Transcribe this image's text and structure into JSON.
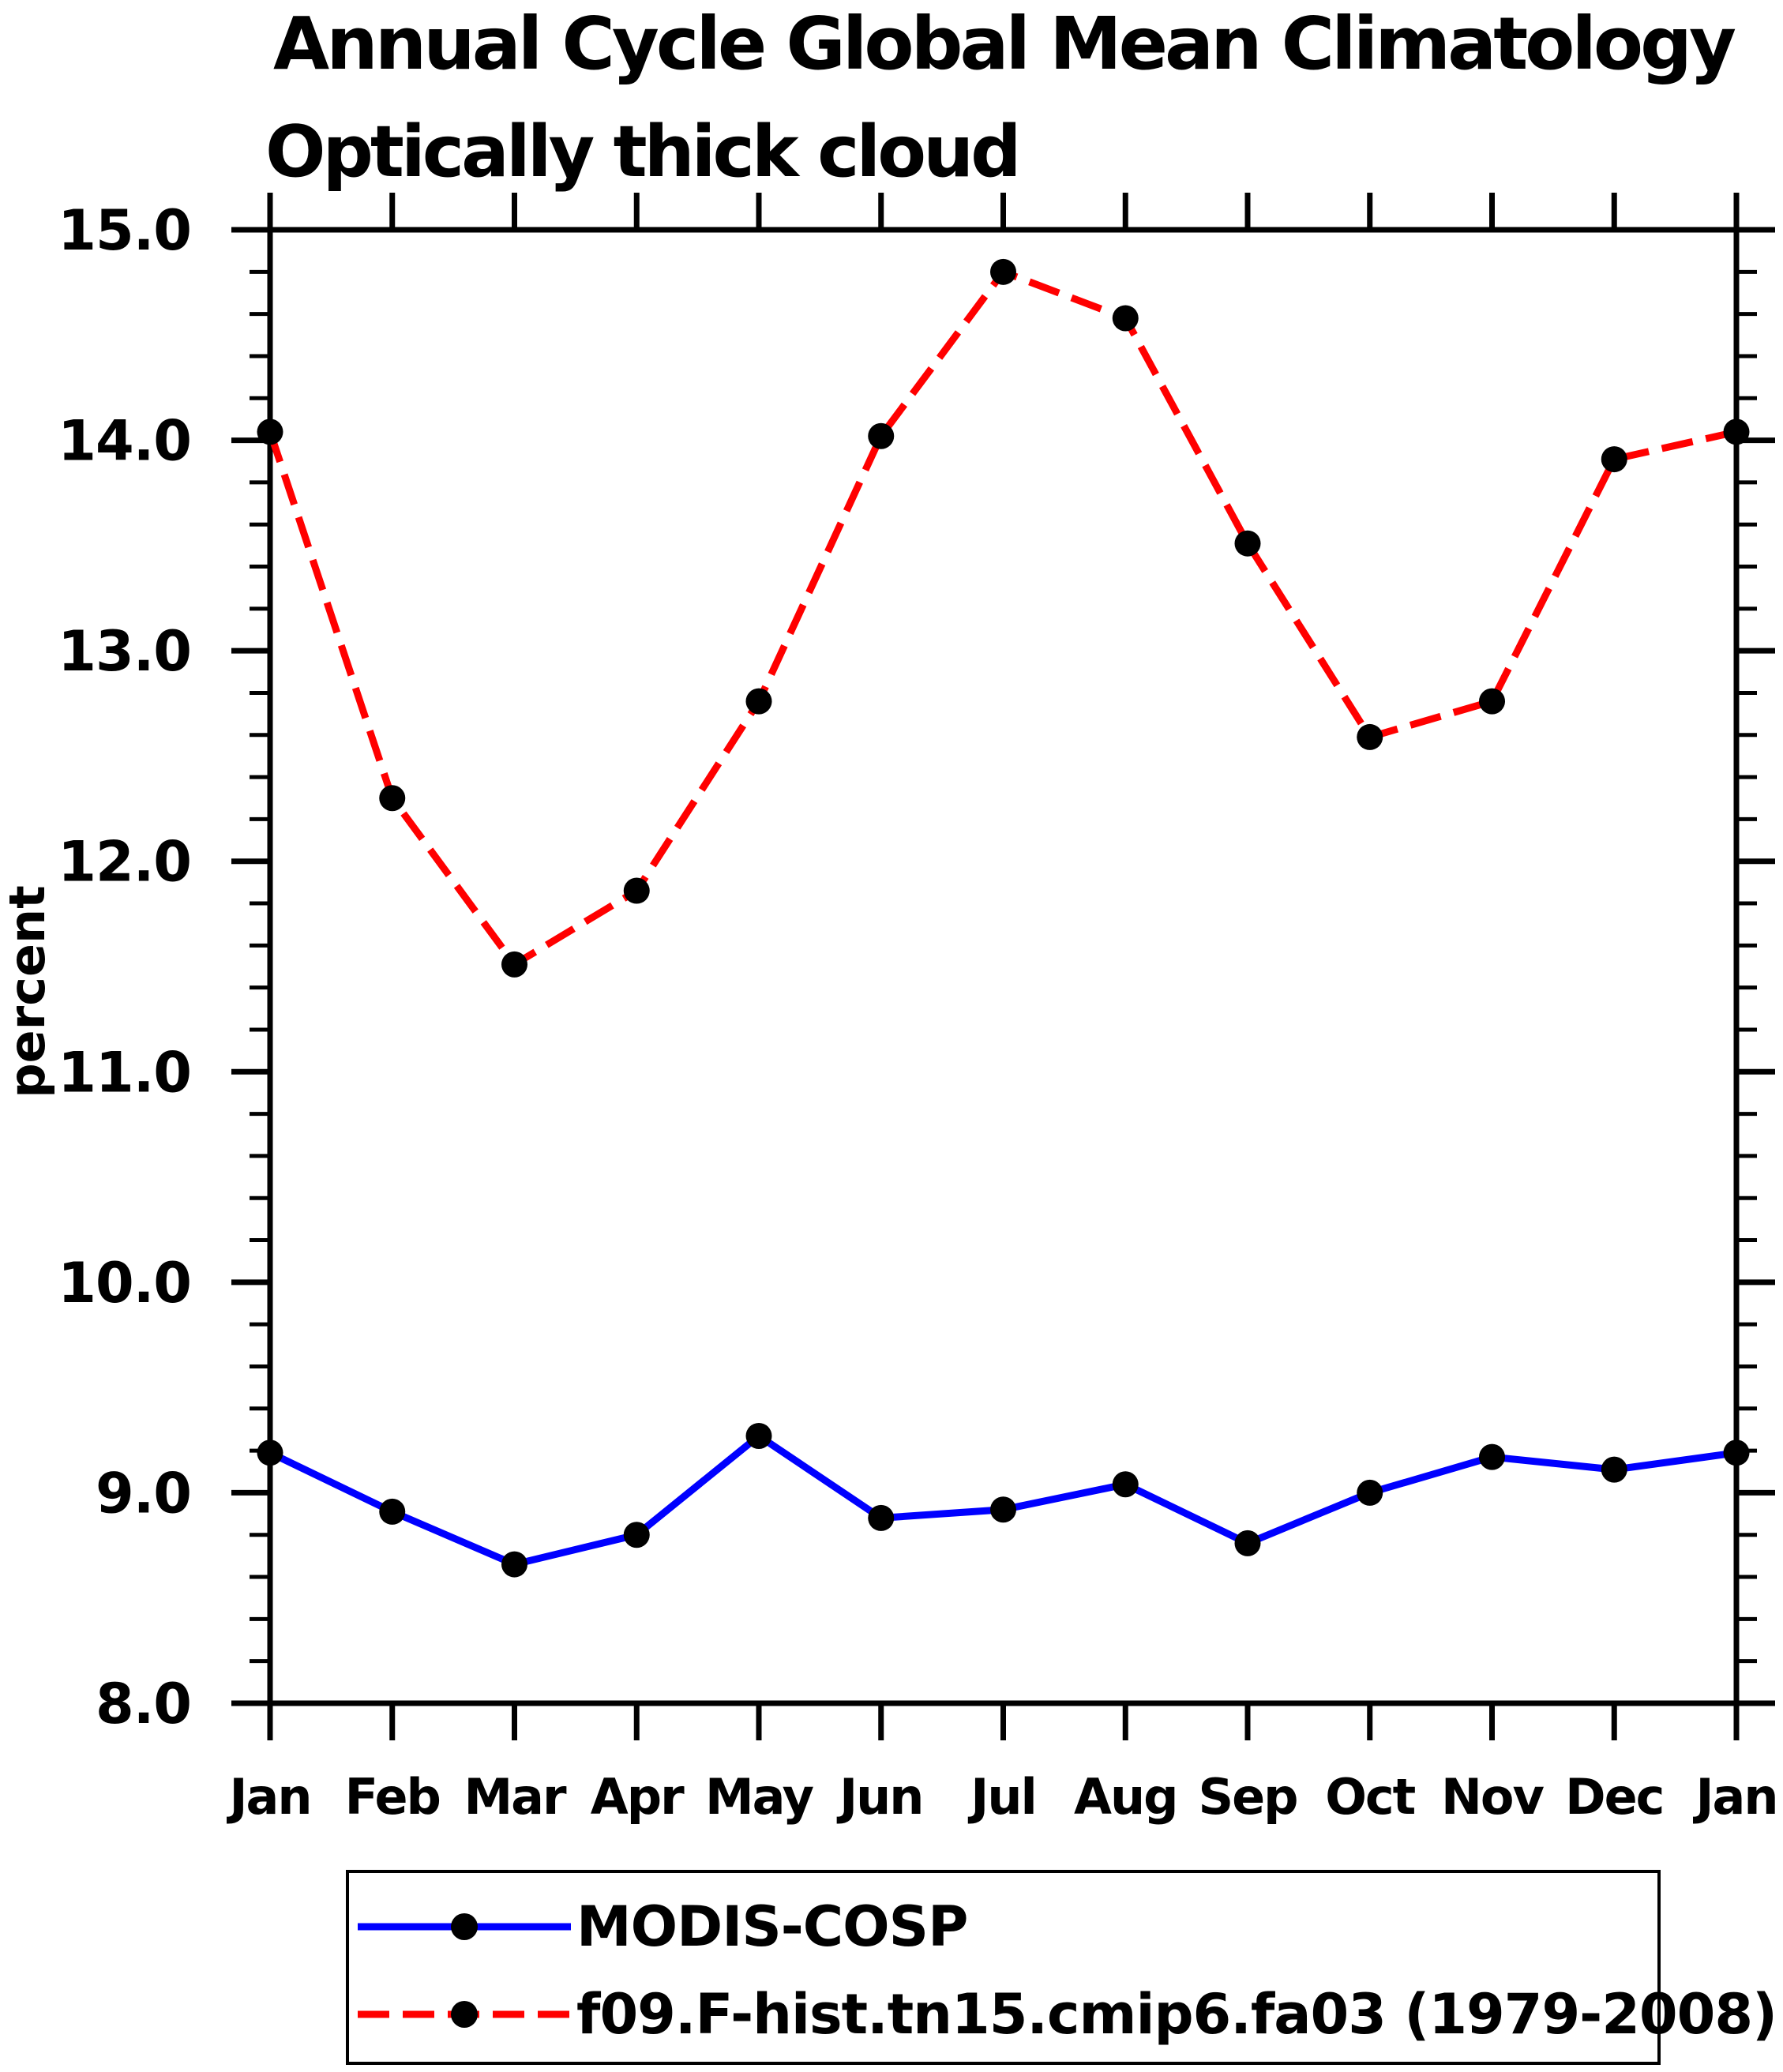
{
  "background_color": "#ffffff",
  "chart_data": {
    "type": "line",
    "title": "Annual Cycle Global Mean Climatology",
    "subtitle": "Optically thick cloud",
    "xlabel": "",
    "ylabel": "percent",
    "categories": [
      "Jan",
      "Feb",
      "Mar",
      "Apr",
      "May",
      "Jun",
      "Jul",
      "Aug",
      "Sep",
      "Oct",
      "Nov",
      "Dec",
      "Jan"
    ],
    "ylim": [
      8.0,
      15.0
    ],
    "ytick_labels": [
      "8.0",
      "9.0",
      "10.0",
      "11.0",
      "12.0",
      "13.0",
      "14.0",
      "15.0"
    ],
    "ytick_major_interval": 1.0,
    "ytick_minor_interval": 0.2,
    "grid": false,
    "legend_position": "bottom",
    "axis_color": "#000000",
    "marker_color": "#000000",
    "series": [
      {
        "name": "MODIS-COSP",
        "color": "#0000ff",
        "line_style": "solid",
        "marker": "circle",
        "values": [
          9.19,
          8.91,
          8.66,
          8.8,
          9.27,
          8.88,
          8.92,
          9.04,
          8.76,
          9.0,
          9.17,
          9.11,
          9.19
        ]
      },
      {
        "name": "f09.F-hist.tn15.cmip6.fa03 (1979-2008)",
        "color": "#ff0000",
        "line_style": "dashed",
        "marker": "circle",
        "values": [
          14.04,
          12.3,
          11.51,
          11.86,
          12.76,
          14.02,
          14.8,
          14.58,
          13.51,
          12.59,
          12.76,
          13.91,
          14.04
        ]
      }
    ]
  }
}
